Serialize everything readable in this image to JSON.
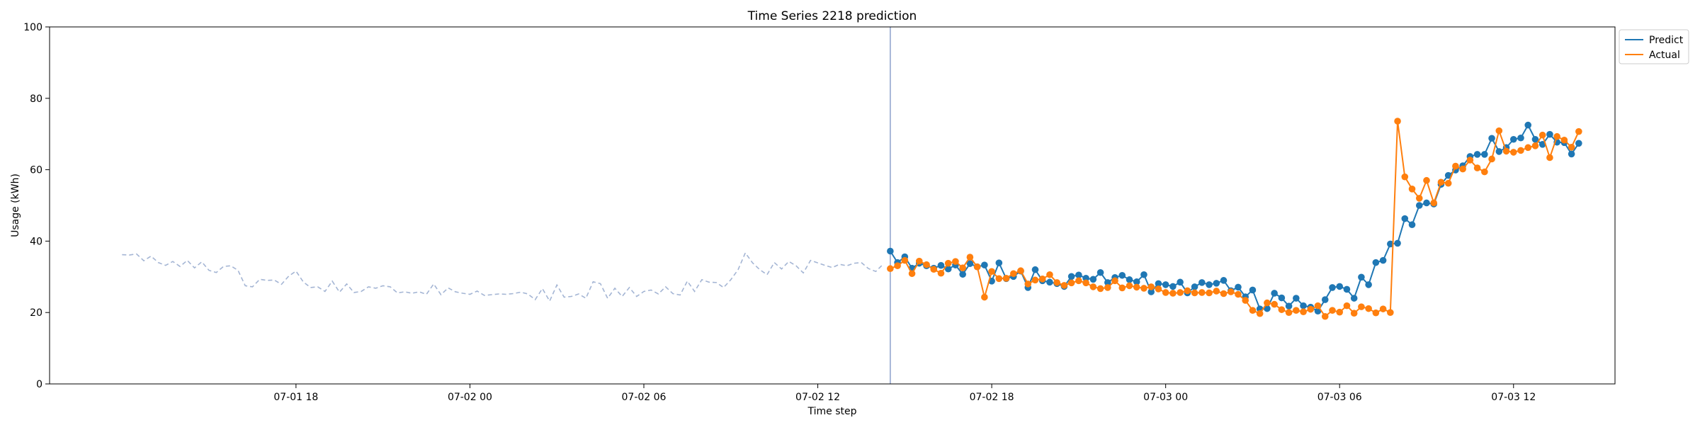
{
  "colors": {
    "predict": "#1f77b4",
    "actual": "#ff7f0e",
    "history": "#a4b5d4",
    "split_line": "#8da0cb"
  },
  "chart_data": {
    "type": "line",
    "title": "Time Series 2218 prediction",
    "xlabel": "Time step",
    "ylabel": "Usage (kWh)",
    "ylim": [
      0,
      100
    ],
    "yticks": [
      0,
      20,
      40,
      60,
      80,
      100
    ],
    "xlim_hours": [
      9.5,
      63.5
    ],
    "xticks": [
      {
        "hour": 18,
        "label": "07-01 18"
      },
      {
        "hour": 24,
        "label": "07-02 00"
      },
      {
        "hour": 30,
        "label": "07-02 06"
      },
      {
        "hour": 36,
        "label": "07-02 12"
      },
      {
        "hour": 42,
        "label": "07-02 18"
      },
      {
        "hour": 48,
        "label": "07-03 00"
      },
      {
        "hour": 54,
        "label": "07-03 06"
      },
      {
        "hour": 60,
        "label": "07-03 12"
      }
    ],
    "x_start_hour": 12,
    "x_step_hours": 0.25,
    "forecast_start_index": 106,
    "legend": {
      "position": "outside-top-right",
      "entries": [
        "Predict",
        "Actual"
      ]
    },
    "grid": false,
    "series": [
      {
        "name": "history",
        "style": "dashed",
        "values": [
          36.2,
          36.1,
          36.4,
          34.5,
          35.8,
          34.0,
          33.2,
          34.3,
          32.9,
          34.6,
          32.5,
          34.2,
          31.8,
          31.2,
          32.9,
          33.1,
          31.8,
          27.5,
          27.2,
          29.3,
          29.0,
          29.1,
          27.9,
          30.2,
          31.6,
          28.6,
          27.0,
          27.2,
          25.9,
          28.8,
          25.7,
          28.0,
          25.6,
          25.9,
          27.2,
          26.8,
          27.5,
          27.2,
          25.5,
          25.8,
          25.4,
          25.8,
          25.1,
          28.0,
          25.0,
          26.9,
          25.8,
          25.4,
          25.1,
          26.0,
          24.8,
          25.0,
          25.2,
          25.1,
          25.3,
          25.7,
          25.2,
          23.6,
          26.7,
          23.2,
          27.7,
          24.3,
          24.5,
          25.2,
          24.0,
          28.6,
          28.1,
          24.0,
          26.8,
          24.5,
          27.0,
          24.5,
          25.9,
          26.3,
          25.2,
          27.2,
          25.3,
          24.9,
          28.8,
          25.9,
          29.2,
          28.5,
          28.4,
          27.0,
          29.2,
          32.0,
          36.7,
          33.9,
          32.0,
          30.6,
          34.0,
          32.2,
          34.3,
          33.1,
          31.1,
          34.6,
          33.9,
          33.2,
          32.6,
          33.5,
          33.1,
          33.8,
          34.0,
          32.3,
          31.5,
          33.5
        ]
      },
      {
        "name": "Predict",
        "style": "solid-marker",
        "values": [
          37.2,
          34.0,
          35.6,
          32.4,
          33.8,
          33.1,
          32.4,
          33.2,
          32.2,
          33.3,
          30.7,
          33.7,
          32.8,
          33.3,
          28.8,
          33.9,
          29.5,
          30.1,
          31.6,
          27.0,
          32.0,
          28.9,
          28.5,
          28.1,
          27.3,
          30.1,
          30.5,
          29.6,
          29.3,
          31.2,
          28.4,
          29.8,
          30.4,
          29.2,
          28.6,
          30.6,
          25.8,
          28.1,
          27.8,
          27.3,
          28.5,
          25.5,
          27.2,
          28.4,
          27.8,
          28.2,
          29.0,
          26.1,
          27.1,
          24.4,
          26.3,
          21.0,
          21.1,
          25.4,
          24.1,
          21.8,
          24.0,
          21.9,
          21.5,
          20.4,
          23.6,
          27.0,
          27.3,
          26.5,
          24.0,
          29.9,
          27.8,
          34.0,
          34.6,
          39.2,
          39.4,
          46.3,
          44.6,
          50.0,
          50.7,
          50.4,
          55.9,
          58.4,
          59.9,
          61.1,
          63.7,
          64.3,
          64.3,
          68.8,
          65.1,
          66.2,
          68.5,
          68.9,
          72.5,
          68.5,
          67.1,
          69.9,
          67.7,
          67.6,
          64.4,
          67.4
        ]
      },
      {
        "name": "Actual",
        "style": "solid-marker",
        "values": [
          32.3,
          33.1,
          34.6,
          30.9,
          34.4,
          33.4,
          32.1,
          31.0,
          33.8,
          34.3,
          32.5,
          35.5,
          32.8,
          24.3,
          31.5,
          29.5,
          29.6,
          30.9,
          31.7,
          28.0,
          29.1,
          29.4,
          30.6,
          28.4,
          27.6,
          28.3,
          28.9,
          28.3,
          27.2,
          26.7,
          27.0,
          28.9,
          26.9,
          27.5,
          27.1,
          26.8,
          27.2,
          26.6,
          25.6,
          25.4,
          25.6,
          26.1,
          25.5,
          25.6,
          25.5,
          26.0,
          25.3,
          25.8,
          25.1,
          23.4,
          20.6,
          19.7,
          22.7,
          22.3,
          20.8,
          20.0,
          20.6,
          20.2,
          20.9,
          21.9,
          18.9,
          20.6,
          20.1,
          21.9,
          19.8,
          21.6,
          21.1,
          19.9,
          21.0,
          20.0,
          73.6,
          58.0,
          54.6,
          52.0,
          57.0,
          50.7,
          56.5,
          56.2,
          61.0,
          60.2,
          62.7,
          60.5,
          59.4,
          63.0,
          70.9,
          65.2,
          64.9,
          65.4,
          66.2,
          66.7,
          69.7,
          63.4,
          69.3,
          68.3,
          66.3,
          70.7
        ]
      }
    ]
  }
}
